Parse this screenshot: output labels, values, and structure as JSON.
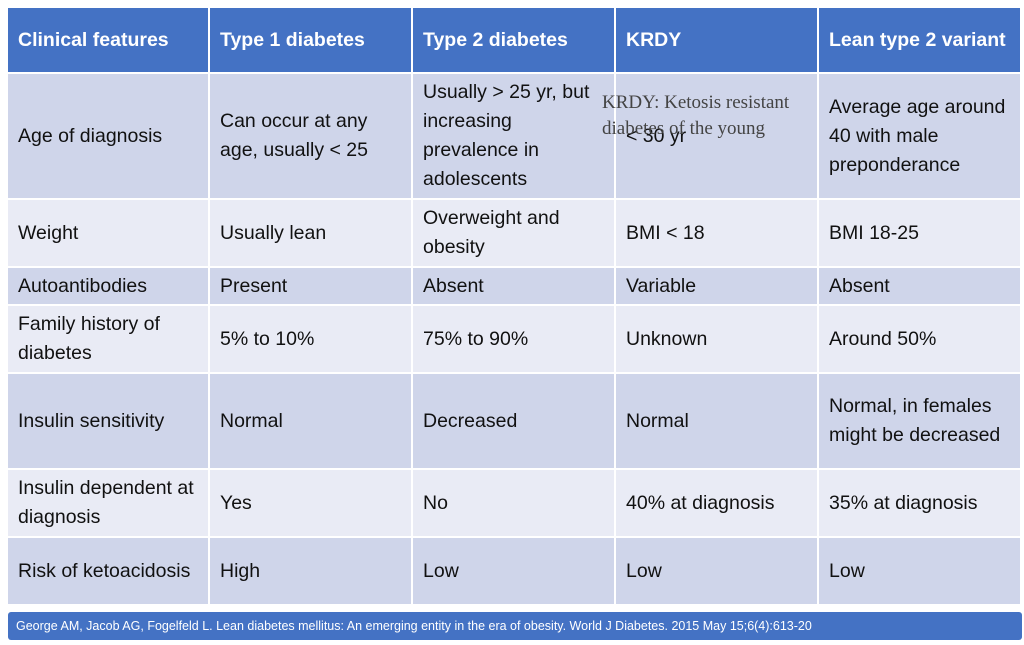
{
  "table": {
    "header": [
      "Clinical features",
      "Type 1 diabetes",
      "Type 2 diabetes",
      "KRDY",
      "Lean type 2 variant"
    ],
    "rows": [
      [
        "Age of diagnosis",
        "Can occur at any age, usually < 25",
        "Usually > 25 yr, but increasing prevalence in adolescents",
        "< 30 yr",
        "Average age around 40 with male preponderance"
      ],
      [
        "Weight",
        "Usually lean",
        "Overweight and obesity",
        "BMI < 18",
        "BMI 18-25"
      ],
      [
        "Autoantibodies",
        "Present",
        "Absent",
        "Variable",
        "Absent"
      ],
      [
        "Family history of diabetes",
        "5% to 10%",
        "75% to 90%",
        "Unknown",
        "Around 50%"
      ],
      [
        "Insulin sensitivity",
        "Normal",
        "Decreased",
        "Normal",
        "Normal, in females might be decreased"
      ],
      [
        "Insulin dependent at diagnosis",
        "Yes",
        "No",
        "40% at diagnosis",
        "35% at diagnosis"
      ],
      [
        "Risk of ketoacidosis",
        "High",
        "Low",
        "Low",
        "Low"
      ]
    ]
  },
  "annotation": "KRDY: Ketosis resistant diabetes of the young",
  "footer": "George AM, Jacob AG, Fogelfeld L. Lean diabetes mellitus: An emerging entity in the era of obesity. World J Diabetes. 2015 May 15;6(4):613-20"
}
